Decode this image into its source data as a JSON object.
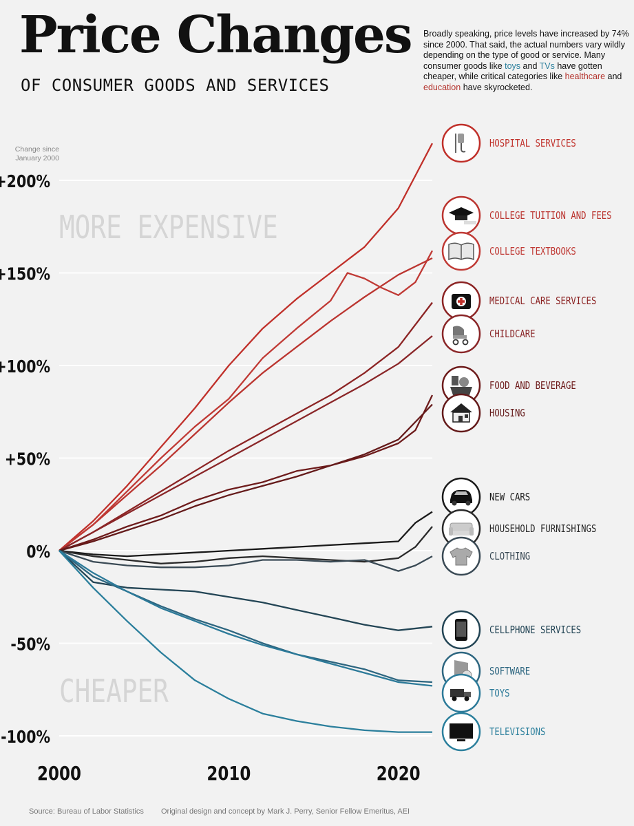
{
  "header": {
    "title": "Price Changes",
    "subtitle": "OF CONSUMER GOODS AND SERVICES",
    "blurb_parts": [
      {
        "t": "Broadly speaking, price levels have increased by 74% since 2000. That said, the actual numbers vary wildly depending on the type of good or service. Many consumer goods like ",
        "c": ""
      },
      {
        "t": "toys",
        "c": "cheap"
      },
      {
        "t": " and ",
        "c": ""
      },
      {
        "t": "TVs",
        "c": "cheap"
      },
      {
        "t": " have gotten cheaper, while critical categories like ",
        "c": ""
      },
      {
        "t": "healthcare",
        "c": "exp"
      },
      {
        "t": " and ",
        "c": ""
      },
      {
        "t": "education",
        "c": "exp"
      },
      {
        "t": " have skyrocketed.",
        "c": ""
      }
    ]
  },
  "footer": {
    "source": "Source: Bureau of Labor Statistics",
    "credit": "Original design and concept by Mark J. Perry, Senior Fellow Emeritus, AEI"
  },
  "chart_data": {
    "type": "line",
    "title": "Price Changes",
    "ylabel": "Change since January 2000",
    "ylim": [
      -100,
      200
    ],
    "xlim": [
      2000,
      2022
    ],
    "x_ticks": [
      "2000",
      "2010",
      "2020"
    ],
    "y_ticks": [
      "+200%",
      "+150%",
      "+100%",
      "+50%",
      "0%",
      "-50%",
      "-100%"
    ],
    "annotations": [
      "MORE EXPENSIVE",
      "CHEAPER"
    ],
    "series": [
      {
        "name": "HOSPITAL SERVICES",
        "color": "#c0302a",
        "icon": "hospital-iv-icon",
        "x": [
          2000,
          2002,
          2004,
          2006,
          2008,
          2010,
          2012,
          2014,
          2016,
          2018,
          2020,
          2022
        ],
        "values": [
          0,
          16,
          35,
          56,
          77,
          100,
          120,
          136,
          150,
          164,
          185,
          220
        ]
      },
      {
        "name": "COLLEGE TUITION AND FEES",
        "color": "#bb3530",
        "icon": "graduation-cap-icon",
        "x": [
          2000,
          2002,
          2004,
          2006,
          2008,
          2010,
          2012,
          2014,
          2016,
          2018,
          2020,
          2022
        ],
        "values": [
          0,
          14,
          30,
          46,
          63,
          80,
          96,
          110,
          124,
          137,
          149,
          158
        ]
      },
      {
        "name": "COLLEGE TEXTBOOKS",
        "color": "#c03a35",
        "icon": "textbook-icon",
        "x": [
          2000,
          2002,
          2004,
          2006,
          2008,
          2010,
          2012,
          2014,
          2016,
          2017,
          2018,
          2019,
          2020,
          2021,
          2022
        ],
        "values": [
          0,
          14,
          32,
          50,
          67,
          82,
          104,
          120,
          135,
          150,
          147,
          142,
          138,
          145,
          162
        ]
      },
      {
        "name": "MEDICAL CARE SERVICES",
        "color": "#8c2424",
        "icon": "medical-kit-icon",
        "x": [
          2000,
          2002,
          2004,
          2006,
          2008,
          2010,
          2012,
          2014,
          2016,
          2018,
          2020,
          2022
        ],
        "values": [
          0,
          10,
          21,
          32,
          43,
          54,
          64,
          74,
          84,
          96,
          110,
          134
        ]
      },
      {
        "name": "CHILDCARE",
        "color": "#8a2628",
        "icon": "stroller-icon",
        "x": [
          2000,
          2002,
          2004,
          2006,
          2008,
          2010,
          2012,
          2014,
          2016,
          2018,
          2020,
          2022
        ],
        "values": [
          0,
          10,
          20,
          30,
          40,
          50,
          60,
          70,
          80,
          90,
          101,
          116
        ]
      },
      {
        "name": "FOOD AND BEVERAGE",
        "color": "#6e1c1c",
        "icon": "food-basket-icon",
        "x": [
          2000,
          2002,
          2004,
          2006,
          2008,
          2010,
          2012,
          2014,
          2016,
          2018,
          2020,
          2021,
          2022
        ],
        "values": [
          0,
          6,
          13,
          19,
          27,
          33,
          37,
          43,
          46,
          51,
          58,
          65,
          84
        ]
      },
      {
        "name": "HOUSING",
        "color": "#641a1a",
        "icon": "house-icon",
        "x": [
          2000,
          2002,
          2004,
          2006,
          2008,
          2010,
          2012,
          2014,
          2016,
          2018,
          2020,
          2022
        ],
        "values": [
          0,
          5,
          11,
          17,
          24,
          30,
          35,
          40,
          46,
          52,
          60,
          79
        ]
      },
      {
        "name": "NEW CARS",
        "color": "#1a1a1a",
        "icon": "car-icon",
        "x": [
          2000,
          2002,
          2004,
          2006,
          2008,
          2010,
          2012,
          2014,
          2016,
          2018,
          2020,
          2021,
          2022
        ],
        "values": [
          0,
          -2,
          -3,
          -2,
          -1,
          0,
          1,
          2,
          3,
          4,
          5,
          15,
          21
        ]
      },
      {
        "name": "HOUSEHOLD FURNISHINGS",
        "color": "#2a2a2a",
        "icon": "sofa-icon",
        "x": [
          2000,
          2002,
          2004,
          2006,
          2008,
          2010,
          2012,
          2014,
          2016,
          2018,
          2020,
          2021,
          2022
        ],
        "values": [
          0,
          -3,
          -5,
          -7,
          -6,
          -4,
          -3,
          -4,
          -5,
          -6,
          -4,
          2,
          13
        ]
      },
      {
        "name": "CLOTHING",
        "color": "#3a4a55",
        "icon": "shirt-icon",
        "x": [
          2000,
          2002,
          2004,
          2006,
          2008,
          2010,
          2012,
          2014,
          2016,
          2018,
          2020,
          2021,
          2022
        ],
        "values": [
          0,
          -6,
          -8,
          -9,
          -9,
          -8,
          -5,
          -5,
          -6,
          -5,
          -11,
          -8,
          -3
        ]
      },
      {
        "name": "CELLPHONE SERVICES",
        "color": "#234555",
        "icon": "cellphone-icon",
        "x": [
          2000,
          2002,
          2004,
          2006,
          2008,
          2010,
          2012,
          2014,
          2016,
          2018,
          2020,
          2022
        ],
        "values": [
          0,
          -17,
          -20,
          -21,
          -22,
          -25,
          -28,
          -32,
          -36,
          -40,
          -43,
          -41
        ]
      },
      {
        "name": "SOFTWARE",
        "color": "#2d6680",
        "icon": "software-box-icon",
        "x": [
          2000,
          2002,
          2004,
          2006,
          2008,
          2010,
          2012,
          2014,
          2016,
          2018,
          2020,
          2022
        ],
        "values": [
          0,
          -14,
          -22,
          -30,
          -37,
          -43,
          -50,
          -56,
          -60,
          -64,
          -70,
          -71
        ]
      },
      {
        "name": "TOYS",
        "color": "#2c7a99",
        "icon": "toy-truck-icon",
        "x": [
          2000,
          2002,
          2004,
          2006,
          2008,
          2010,
          2012,
          2014,
          2016,
          2018,
          2020,
          2022
        ],
        "values": [
          0,
          -12,
          -22,
          -31,
          -38,
          -45,
          -51,
          -56,
          -61,
          -66,
          -71,
          -73
        ]
      },
      {
        "name": "TELEVISIONS",
        "color": "#2b7f9c",
        "icon": "television-icon",
        "x": [
          2000,
          2002,
          2004,
          2006,
          2008,
          2010,
          2012,
          2014,
          2016,
          2018,
          2020,
          2022
        ],
        "values": [
          0,
          -20,
          -38,
          -55,
          -70,
          -80,
          -88,
          -92,
          -95,
          -97,
          -98,
          -98
        ]
      }
    ]
  }
}
